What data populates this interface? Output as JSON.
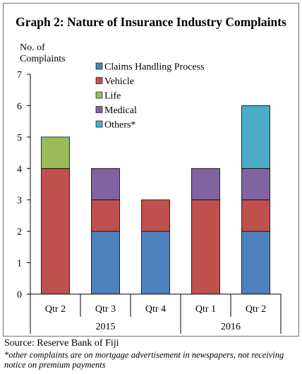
{
  "title": "Graph 2: Nature of Insurance Industry Complaints",
  "source": "Source: Reserve Bank of Fiji",
  "footnote": "*other complaints are on mortgage advertisement in newspapers, not receiving notice on premium payments",
  "chart_data": {
    "type": "bar",
    "stacked": true,
    "title": "Graph 2: Nature of Insurance Industry Complaints",
    "ylabel": "No. of Complaints",
    "xlabel": "",
    "ylim": [
      0,
      7
    ],
    "yticks": [
      0,
      1,
      2,
      3,
      4,
      5,
      6,
      7
    ],
    "grid": false,
    "legend_position": "top-right",
    "categories": [
      "Qtr 2",
      "Qtr 3",
      "Qtr 4",
      "Qtr 1",
      "Qtr 2"
    ],
    "groups": [
      {
        "label": "2015",
        "categories": [
          0,
          1,
          2
        ]
      },
      {
        "label": "2016",
        "categories": [
          3,
          4
        ]
      }
    ],
    "series": [
      {
        "name": "Claims Handling Process",
        "color": "#4f81bd",
        "values": [
          0,
          2,
          2,
          0,
          2
        ]
      },
      {
        "name": "Vehicle",
        "color": "#c0504d",
        "values": [
          4,
          1,
          1,
          3,
          1
        ]
      },
      {
        "name": "Life",
        "color": "#9bbb59",
        "values": [
          1,
          0,
          0,
          0,
          0
        ]
      },
      {
        "name": "Medical",
        "color": "#8064a2",
        "values": [
          0,
          1,
          0,
          1,
          1
        ]
      },
      {
        "name": "Others*",
        "color": "#4bacc6",
        "values": [
          0,
          0,
          0,
          0,
          2
        ]
      }
    ]
  }
}
